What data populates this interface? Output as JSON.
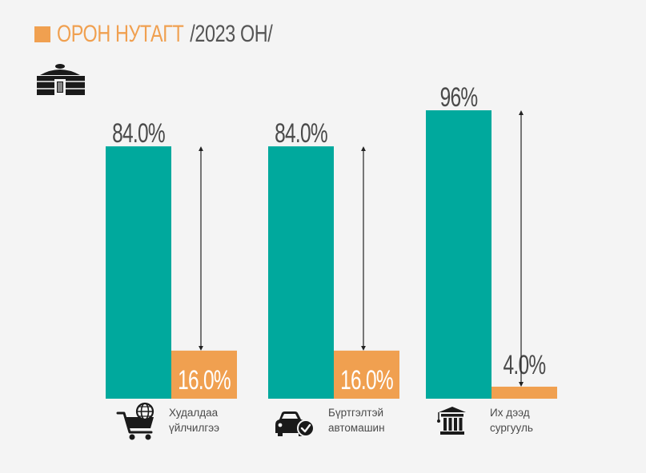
{
  "title": {
    "main": "ОРОН НУТАГТ",
    "sub": "/2023 ОН/"
  },
  "colors": {
    "urban": "#00a99d",
    "rural": "#f0a050",
    "text": "#4a4a4a",
    "background": "#f4f4f4"
  },
  "header_icon": "yurt-icon",
  "chart_data": {
    "type": "bar",
    "stacked": false,
    "categories": [
      "Худалдаа үйлчилгээ",
      "Бүртгэлтэй автомашин",
      "Их дээд сургууль"
    ],
    "series": [
      {
        "values": [
          84.0,
          84.0,
          96
        ],
        "color": "#00a99d"
      },
      {
        "values": [
          16.0,
          16.0,
          4.0
        ],
        "color": "#f0a050"
      }
    ],
    "labels": [
      [
        "84.0%",
        "16.0%"
      ],
      [
        "84.0%",
        "16.0%"
      ],
      [
        "96%",
        "4.0%"
      ]
    ],
    "ylim": [
      0,
      100
    ],
    "grid": false,
    "legend": "none"
  },
  "categories": [
    {
      "line1": "Худалдаа",
      "line2": "үйлчилгээ",
      "icon": "shopping-cart-globe-icon"
    },
    {
      "line1": "Бүртгэлтэй",
      "line2": "автомашин",
      "icon": "car-check-icon"
    },
    {
      "line1": "Их дээд",
      "line2": "сургууль",
      "icon": "university-icon"
    }
  ]
}
